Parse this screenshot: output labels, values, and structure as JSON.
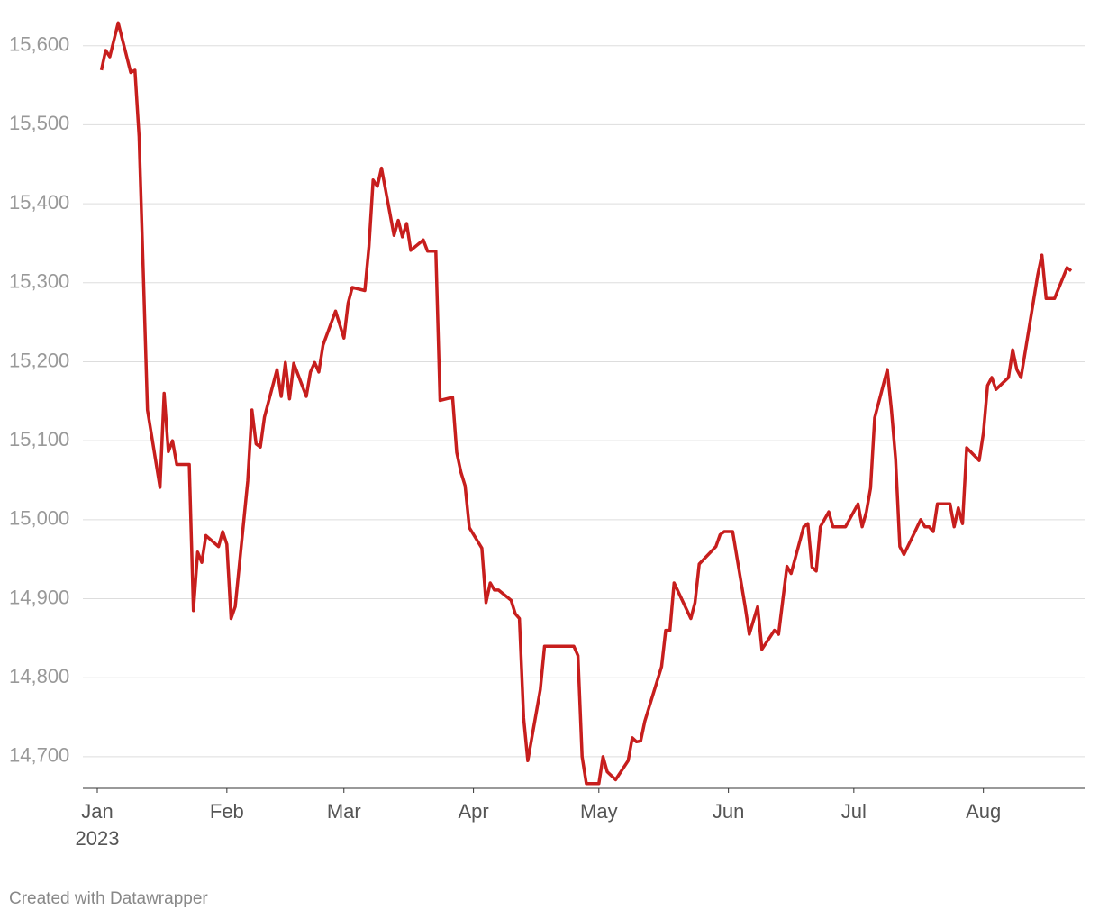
{
  "chart_data": {
    "type": "line",
    "x": [
      1,
      2,
      3,
      5,
      8,
      9,
      10,
      11,
      12,
      15,
      16,
      17,
      18,
      19,
      22,
      23,
      24,
      25,
      26,
      29,
      30,
      31,
      32,
      33,
      36,
      37,
      38,
      39,
      40,
      43,
      44,
      45,
      46,
      47,
      50,
      51,
      52,
      53,
      54,
      57,
      59,
      60,
      61,
      64,
      65,
      66,
      67,
      68,
      71,
      72,
      73,
      74,
      75,
      78,
      79,
      81,
      82,
      85,
      86,
      87,
      88,
      89,
      92,
      93,
      94,
      95,
      96,
      99,
      100,
      101,
      102,
      103,
      106,
      107,
      114,
      115,
      116,
      117,
      120,
      121,
      122,
      124,
      127,
      128,
      129,
      130,
      131,
      135,
      136,
      137,
      138,
      142,
      143,
      144,
      148,
      149,
      150,
      152,
      155,
      156,
      158,
      159,
      162,
      163,
      165,
      166,
      169,
      170,
      171,
      172,
      173,
      175,
      176,
      179,
      182,
      183,
      184,
      185,
      186,
      189,
      190,
      191,
      192,
      193,
      197,
      198,
      199,
      200,
      201,
      204,
      205,
      206,
      207,
      208,
      211,
      212,
      213,
      214,
      215,
      218,
      219,
      220,
      221,
      225,
      226,
      227,
      229,
      232,
      233
    ],
    "values": [
      15569,
      15594,
      15586,
      15629,
      15566,
      15569,
      15485,
      15315,
      15139,
      15041,
      15160,
      15086,
      15100,
      15070,
      15070,
      14885,
      14959,
      14946,
      14980,
      14966,
      14985,
      14969,
      14875,
      14890,
      15049,
      15139,
      15096,
      15092,
      15130,
      15190,
      15156,
      15199,
      15153,
      15198,
      15156,
      15187,
      15199,
      15187,
      15221,
      15264,
      15230,
      15274,
      15294,
      15290,
      15346,
      15430,
      15422,
      15445,
      15360,
      15379,
      15358,
      15375,
      15341,
      15354,
      15340,
      15340,
      15151,
      15155,
      15085,
      15060,
      15043,
      14990,
      14964,
      14895,
      14920,
      14911,
      14911,
      14898,
      14881,
      14875,
      14749,
      14695,
      14785,
      14840,
      14840,
      14828,
      14700,
      14666,
      14666,
      14700,
      14681,
      14671,
      14695,
      14724,
      14719,
      14720,
      14745,
      14814,
      14860,
      14860,
      14920,
      14875,
      14895,
      14944,
      14966,
      14981,
      14985,
      14985,
      14890,
      14855,
      14890,
      14836,
      14860,
      14855,
      14941,
      14932,
      14991,
      14995,
      14940,
      14935,
      14991,
      15010,
      14991,
      14991,
      15020,
      14991,
      15010,
      15040,
      15129,
      15190,
      15139,
      15077,
      14966,
      14956,
      15000,
      14991,
      14991,
      14985,
      15020,
      15020,
      14991,
      15015,
      14995,
      15091,
      15075,
      15110,
      15170,
      15180,
      15165,
      15180,
      15215,
      15190,
      15180,
      15310,
      15335,
      15280,
      15280,
      15319,
      15315
    ],
    "color": "#c71e1d",
    "xlim": [
      0,
      235
    ],
    "xticks": [
      {
        "value": 0,
        "label": "Jan"
      },
      {
        "value": 31,
        "label": "Feb"
      },
      {
        "value": 59,
        "label": "Mar"
      },
      {
        "value": 90,
        "label": "Apr"
      },
      {
        "value": 120,
        "label": "May"
      },
      {
        "value": 151,
        "label": "Jun"
      },
      {
        "value": 181,
        "label": "Jul"
      },
      {
        "value": 212,
        "label": "Aug"
      }
    ],
    "x_year_label": "2023",
    "ylim": [
      14660,
      15635
    ],
    "yticks": [
      {
        "value": 14700,
        "label": "14,700"
      },
      {
        "value": 14800,
        "label": "14,800"
      },
      {
        "value": 14900,
        "label": "14,900"
      },
      {
        "value": 15000,
        "label": "15,000"
      },
      {
        "value": 15100,
        "label": "15,100"
      },
      {
        "value": 15200,
        "label": "15,200"
      },
      {
        "value": 15300,
        "label": "15,300"
      },
      {
        "value": 15400,
        "label": "15,400"
      },
      {
        "value": 15500,
        "label": "15,500"
      },
      {
        "value": 15600,
        "label": "15,600"
      }
    ],
    "grid": true,
    "footer": "Created with Datawrapper"
  }
}
